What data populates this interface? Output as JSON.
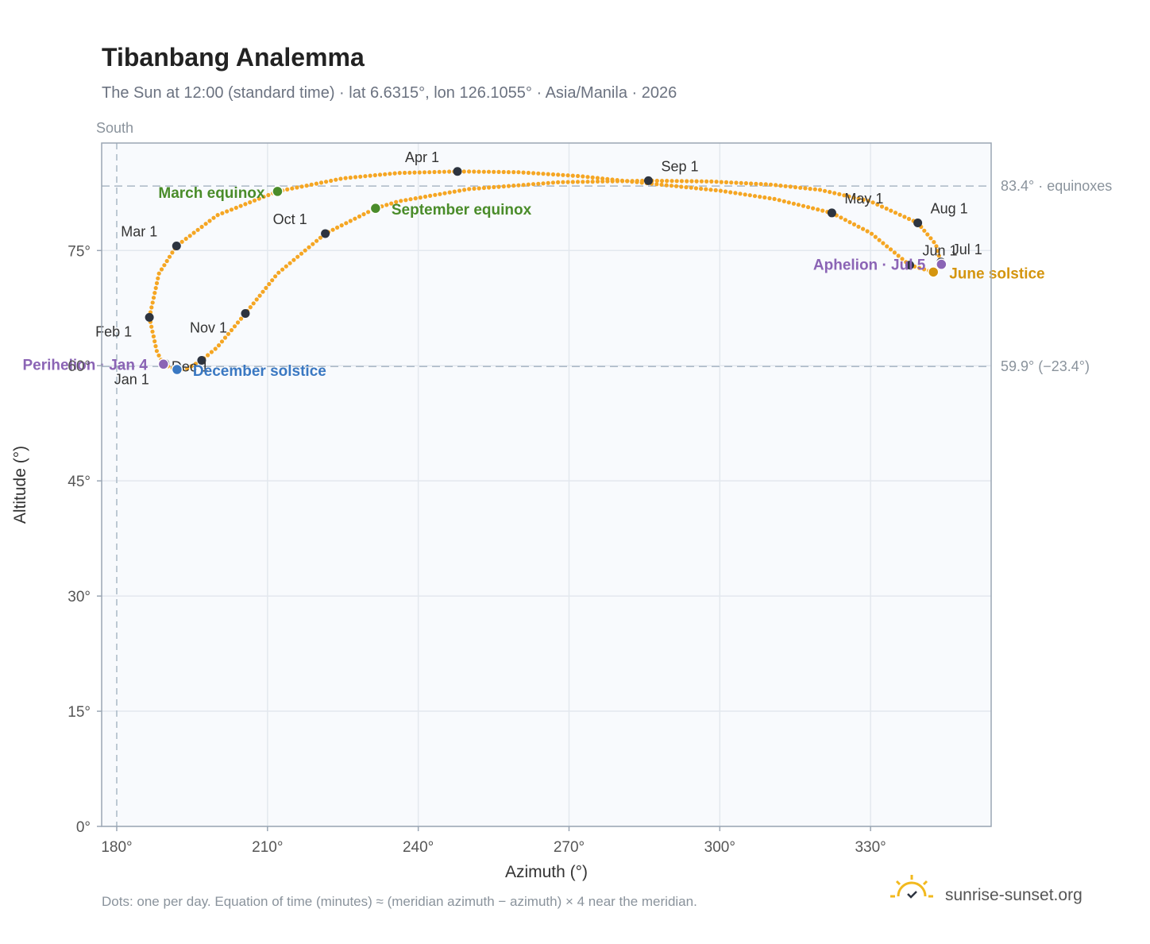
{
  "title": "Tibanbang Analemma",
  "subtitle": "The Sun at 12:00 (standard time) · lat 6.6315°, lon 126.1055° · Asia/Manila · 2026",
  "direction_label": "South",
  "footnote": "Dots: one per day. Equation of time (minutes) ≈ (meridian azimuth − azimuth) × 4 near the meridian.",
  "brand": "sunrise-sunset.org",
  "colors": {
    "curve": "#f5a623",
    "month_marker": "#2d3440",
    "equinox": "#4a8c2a",
    "solstice_december": "#3a78c2",
    "solstice_june": "#d4950f",
    "apsis": "#8b64b5",
    "reference_line": "#aab8c6",
    "plot_background": "#f8fafd",
    "plot_border": "#9aa6b4",
    "grid": "#e3e8ee"
  },
  "chart_data": {
    "type": "scatter",
    "xlabel": "Azimuth (°)",
    "ylabel": "Altitude (°)",
    "xlim": [
      177,
      354
    ],
    "ylim": [
      0,
      89
    ],
    "x_ticks": [
      180,
      210,
      240,
      270,
      300,
      330
    ],
    "x_tick_labels": [
      "180°",
      "210°",
      "240°",
      "270°",
      "300°",
      "330°"
    ],
    "y_ticks": [
      0,
      15,
      30,
      45,
      60,
      75
    ],
    "y_tick_labels": [
      "0°",
      "15°",
      "30°",
      "45°",
      "60°",
      "75°"
    ],
    "grid": true,
    "meridian_azimuth": 180,
    "reference_lines": [
      {
        "altitude": 83.4,
        "label": "83.4° · equinoxes"
      },
      {
        "altitude": 59.9,
        "label": "59.9° (−23.4°)"
      }
    ],
    "path_anchors": [
      {
        "x": 189.3,
        "y": 60.2
      },
      {
        "x": 188.0,
        "y": 61.8
      },
      {
        "x": 186.5,
        "y": 66.3
      },
      {
        "x": 188.4,
        "y": 72.0
      },
      {
        "x": 191.9,
        "y": 75.6
      },
      {
        "x": 200.0,
        "y": 79.6
      },
      {
        "x": 212.0,
        "y": 82.7
      },
      {
        "x": 225.0,
        "y": 84.4
      },
      {
        "x": 236.0,
        "y": 85.1
      },
      {
        "x": 247.8,
        "y": 85.3
      },
      {
        "x": 260.0,
        "y": 85.2
      },
      {
        "x": 272.0,
        "y": 84.7
      },
      {
        "x": 285.0,
        "y": 83.8
      },
      {
        "x": 300.0,
        "y": 82.8
      },
      {
        "x": 311.0,
        "y": 81.7
      },
      {
        "x": 322.3,
        "y": 79.9
      },
      {
        "x": 330.0,
        "y": 77.3
      },
      {
        "x": 337.8,
        "y": 73.1
      },
      {
        "x": 342.5,
        "y": 72.2
      },
      {
        "x": 344.1,
        "y": 73.2
      },
      {
        "x": 343.0,
        "y": 75.8
      },
      {
        "x": 339.4,
        "y": 78.6
      },
      {
        "x": 330.0,
        "y": 81.4
      },
      {
        "x": 320.0,
        "y": 82.9
      },
      {
        "x": 310.0,
        "y": 83.6
      },
      {
        "x": 298.0,
        "y": 84.0
      },
      {
        "x": 285.8,
        "y": 84.1
      },
      {
        "x": 268.0,
        "y": 83.9
      },
      {
        "x": 250.0,
        "y": 83.0
      },
      {
        "x": 236.0,
        "y": 81.4
      },
      {
        "x": 231.5,
        "y": 80.5
      },
      {
        "x": 221.5,
        "y": 77.2
      },
      {
        "x": 212.0,
        "y": 72.0
      },
      {
        "x": 205.6,
        "y": 66.8
      },
      {
        "x": 200.0,
        "y": 62.4
      },
      {
        "x": 196.9,
        "y": 60.7
      },
      {
        "x": 194.0,
        "y": 59.6
      },
      {
        "x": 192.0,
        "y": 59.5
      },
      {
        "x": 190.6,
        "y": 59.8
      },
      {
        "x": 189.3,
        "y": 60.2
      }
    ],
    "month_markers": [
      {
        "label": "Jan 1",
        "azimuth": 189.6,
        "altitude": 60.3
      },
      {
        "label": "Feb 1",
        "azimuth": 186.5,
        "altitude": 66.3
      },
      {
        "label": "Mar 1",
        "azimuth": 191.9,
        "altitude": 75.6
      },
      {
        "label": "Apr 1",
        "azimuth": 247.8,
        "altitude": 85.3
      },
      {
        "label": "May 1",
        "azimuth": 322.3,
        "altitude": 79.9
      },
      {
        "label": "Jun 1",
        "azimuth": 337.8,
        "altitude": 73.1
      },
      {
        "label": "Jul 1",
        "azimuth": 344.0,
        "altitude": 73.5
      },
      {
        "label": "Aug 1",
        "azimuth": 339.4,
        "altitude": 78.6
      },
      {
        "label": "Sep 1",
        "azimuth": 285.8,
        "altitude": 84.1
      },
      {
        "label": "Oct 1",
        "azimuth": 221.5,
        "altitude": 77.2
      },
      {
        "label": "Nov 1",
        "azimuth": 205.6,
        "altitude": 66.8
      },
      {
        "label": "Dec 1",
        "azimuth": 196.9,
        "altitude": 60.7
      }
    ],
    "events": [
      {
        "label": "March equinox",
        "azimuth": 212.0,
        "altitude": 82.7,
        "color_key": "equinox"
      },
      {
        "label": "September equinox",
        "azimuth": 231.5,
        "altitude": 80.5,
        "color_key": "equinox"
      },
      {
        "label": "December solstice",
        "azimuth": 192.0,
        "altitude": 59.5,
        "color_key": "solstice_december"
      },
      {
        "label": "June solstice",
        "azimuth": 342.5,
        "altitude": 72.2,
        "color_key": "solstice_june"
      },
      {
        "label": "Perihelion · Jan 4",
        "azimuth": 189.3,
        "altitude": 60.2,
        "color_key": "apsis"
      },
      {
        "label": "Aphelion · Jul 5",
        "azimuth": 344.1,
        "altitude": 73.2,
        "color_key": "apsis"
      }
    ]
  }
}
